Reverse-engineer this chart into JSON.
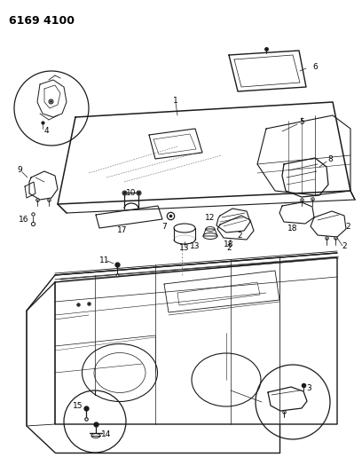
{
  "title": "6169 4100",
  "bg_color": "#ffffff",
  "line_color": "#1a1a1a",
  "fig_width": 4.08,
  "fig_height": 5.33,
  "dpi": 100
}
